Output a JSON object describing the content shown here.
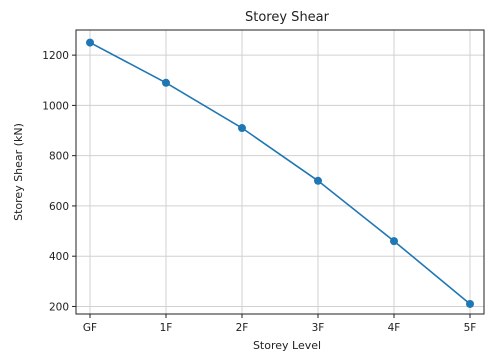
{
  "chart_data": {
    "type": "line",
    "title": "Storey Shear",
    "xlabel": "Storey Level",
    "ylabel": "Storey Shear (kN)",
    "categories": [
      "GF",
      "1F",
      "2F",
      "3F",
      "4F",
      "5F"
    ],
    "series": [
      {
        "values": [
          1250,
          1090,
          910,
          700,
          460,
          210
        ]
      }
    ],
    "ylim": [
      170,
      1300
    ],
    "yticks": [
      200,
      400,
      600,
      800,
      1000,
      1200
    ],
    "grid": true,
    "markers": true,
    "colors": {
      "series": "#1f77b4"
    }
  }
}
